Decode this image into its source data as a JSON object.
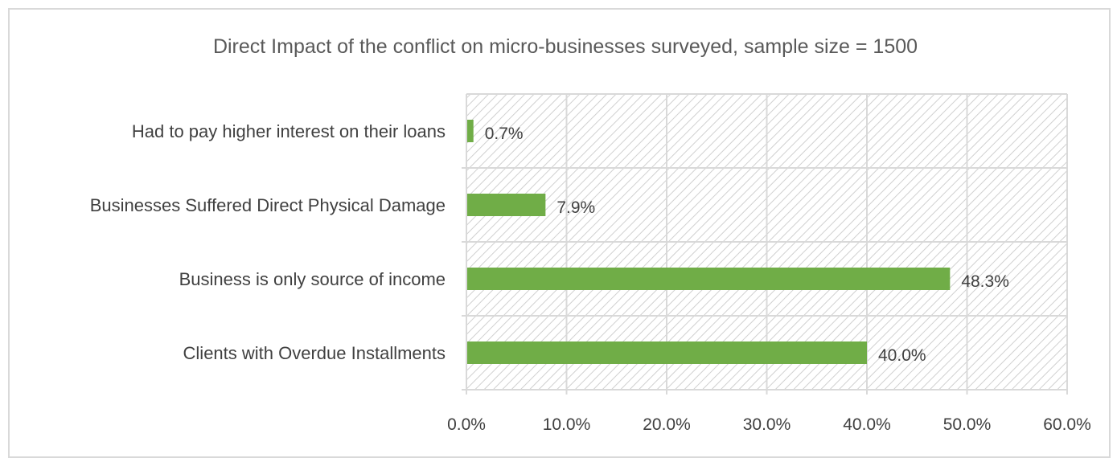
{
  "chart_data": {
    "type": "bar",
    "orientation": "horizontal",
    "title": "Direct Impact of the conflict on micro-businesses surveyed, sample size = 1500",
    "xlabel": "",
    "ylabel": "",
    "categories": [
      "Had to pay higher interest on their loans",
      "Businesses Suffered Direct Physical Damage",
      "Business is only source of income",
      "Clients with Overdue Installments"
    ],
    "values": [
      0.7,
      7.9,
      48.3,
      40.0
    ],
    "data_labels": [
      "0.7%",
      "7.9%",
      "48.3%",
      "40.0%"
    ],
    "xlim": [
      0,
      60
    ],
    "x_ticks": [
      0,
      10,
      20,
      30,
      40,
      50,
      60
    ],
    "x_tick_labels": [
      "0.0%",
      "10.0%",
      "20.0%",
      "30.0%",
      "40.0%",
      "50.0%",
      "60.0%"
    ],
    "grid": true,
    "plot_background": "hatched",
    "legend": "none",
    "colors": {
      "bar": "#70ad47",
      "grid": "#d9d9d9",
      "hatch": "#d0d0d0",
      "text": "#404040",
      "title": "#595959"
    }
  }
}
